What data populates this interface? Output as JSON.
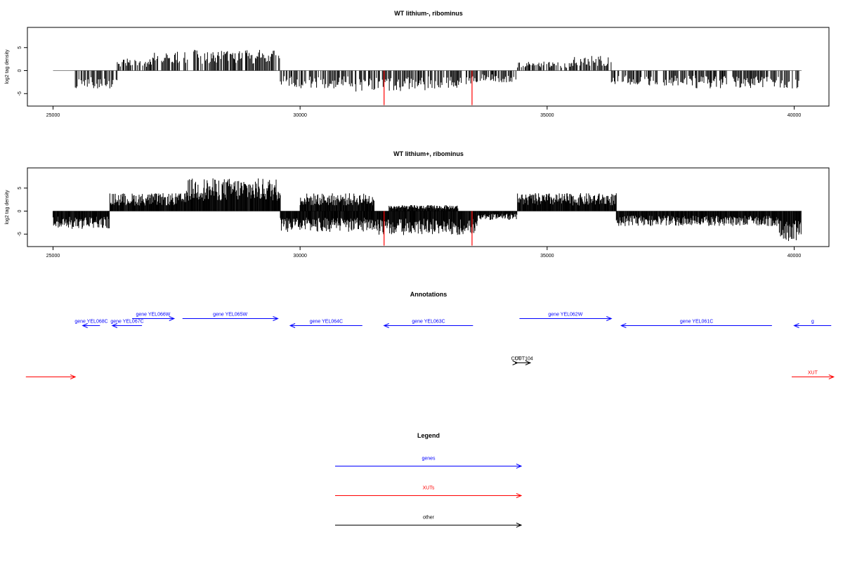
{
  "chart_data": [
    {
      "type": "bar",
      "title": "WT lithium-, ribominus",
      "ylabel": "log2 tag density",
      "xlabel": "",
      "xlim": [
        25000,
        40000
      ],
      "ylim": [
        -8,
        10
      ],
      "xticks": [
        "25000",
        "30000",
        "35000",
        "40000"
      ],
      "yticks": [
        "-5",
        "0",
        "5"
      ],
      "grid": false,
      "density": "sparse",
      "signal": [
        {
          "x": [
            25000,
            25450
          ],
          "y": 0
        },
        {
          "x": [
            25450,
            26300
          ],
          "y": -3
        },
        {
          "x": [
            26300,
            27000
          ],
          "y": 2
        },
        {
          "x": [
            27000,
            27700
          ],
          "y": 3.5
        },
        {
          "x": [
            27700,
            29600
          ],
          "y": 3.5
        },
        {
          "x": [
            29600,
            31000
          ],
          "y": -3
        },
        {
          "x": [
            31000,
            32600
          ],
          "y": -3.5
        },
        {
          "x": [
            32600,
            33500
          ],
          "y": -3
        },
        {
          "x": [
            33500,
            34400
          ],
          "y": -2
        },
        {
          "x": [
            34400,
            35500
          ],
          "y": 1.5
        },
        {
          "x": [
            35500,
            36300
          ],
          "y": 2.5
        },
        {
          "x": [
            36300,
            38000
          ],
          "y": -2.5
        },
        {
          "x": [
            38000,
            40100
          ],
          "y": -3
        }
      ],
      "highlights": [
        {
          "x": 31700,
          "y": -7.5,
          "color": "#ff0000"
        },
        {
          "x": 33480,
          "y": -7.5,
          "color": "#ff0000"
        }
      ]
    },
    {
      "type": "bar",
      "title": "WT lithium+, ribominus",
      "ylabel": "log2 tag density",
      "xlabel": "",
      "xlim": [
        25000,
        40000
      ],
      "ylim": [
        -8,
        10
      ],
      "xticks": [
        "25000",
        "30000",
        "35000",
        "40000"
      ],
      "yticks": [
        "-5",
        "0",
        "5"
      ],
      "grid": false,
      "density": "dense",
      "signal": [
        {
          "x": [
            25000,
            26150
          ],
          "y": -3
        },
        {
          "x": [
            26150,
            27700
          ],
          "y": 3
        },
        {
          "x": [
            27700,
            29600
          ],
          "y": 5.5
        },
        {
          "x": [
            29600,
            31500
          ],
          "y": -3.5
        },
        {
          "x": [
            30000,
            31500
          ],
          "y": 3
        },
        {
          "x": [
            31500,
            33600
          ],
          "y": -4
        },
        {
          "x": [
            31800,
            33200
          ],
          "y": 1
        },
        {
          "x": [
            33600,
            34400
          ],
          "y": -1.5
        },
        {
          "x": [
            34400,
            36400
          ],
          "y": 3
        },
        {
          "x": [
            36400,
            39700
          ],
          "y": -2.5
        },
        {
          "x": [
            39700,
            40150
          ],
          "y": -5
        }
      ],
      "highlights": [
        {
          "x": 31700,
          "y": -7.5,
          "color": "#ff0000"
        },
        {
          "x": 33480,
          "y": -7.5,
          "color": "#ff0000"
        }
      ]
    }
  ],
  "annotations": {
    "title": "Annotations",
    "features": [
      {
        "label": "gene YEL068C",
        "start": 25950,
        "end": 25600,
        "row": 0,
        "color": "#0000ff"
      },
      {
        "label": "gene YEL067C",
        "start": 26800,
        "end": 26200,
        "row": 0,
        "color": "#0000ff"
      },
      {
        "label": "gene YEL066W",
        "start": 26600,
        "end": 27450,
        "row": 1,
        "color": "#0000ff"
      },
      {
        "label": "gene YEL065W",
        "start": 27620,
        "end": 29550,
        "row": 1,
        "color": "#0000ff"
      },
      {
        "label": "gene YEL064C",
        "start": 31260,
        "end": 29800,
        "row": 0,
        "color": "#0000ff"
      },
      {
        "label": "gene YEL063C",
        "start": 33500,
        "end": 31700,
        "row": 0,
        "color": "#0000ff"
      },
      {
        "label": "gene YEL062W",
        "start": 34440,
        "end": 36300,
        "row": 1,
        "color": "#0000ff"
      },
      {
        "label": "gene YEL061C",
        "start": 39550,
        "end": 36500,
        "row": 0,
        "color": "#0000ff"
      },
      {
        "label": "g",
        "start": 40750,
        "end": 40000,
        "row": 0,
        "color": "#0000ff"
      },
      {
        "label": "CUT",
        "start": 34350,
        "end": 34400,
        "row": 2,
        "color": "#000000"
      },
      {
        "label": "CUT104",
        "start": 34400,
        "end": 34660,
        "row": 2,
        "color": "#000000"
      },
      {
        "label": "",
        "start": 24450,
        "end": 25450,
        "row": 3,
        "color": "#ff0000"
      },
      {
        "label": "XUT",
        "start": 39950,
        "end": 40800,
        "row": 3,
        "color": "#ff0000"
      }
    ]
  },
  "legend": {
    "title": "Legend",
    "items": [
      {
        "label": "genes",
        "color": "#0000ff"
      },
      {
        "label": "XUTs",
        "color": "#ff0000"
      },
      {
        "label": "other",
        "color": "#000000"
      }
    ]
  }
}
